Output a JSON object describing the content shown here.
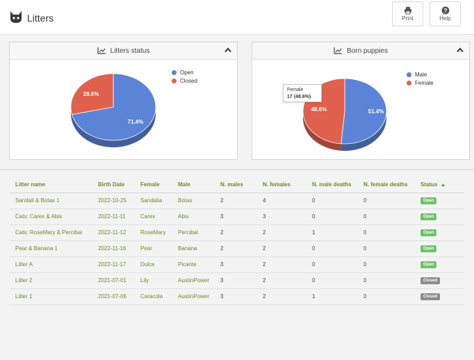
{
  "app": {
    "title": "Litters",
    "logo_icon": "cat-icon"
  },
  "toolbar": {
    "print_label": "Print",
    "help_label": "Help"
  },
  "panels": {
    "litters_status": {
      "title": "Litters status",
      "icon": "line-chart-icon",
      "chart_data": {
        "type": "pie",
        "categories": [
          "Open",
          "Closed"
        ],
        "values": [
          71.4,
          28.6
        ],
        "colors": [
          "#5b84d6",
          "#e0604e"
        ],
        "labels": [
          "71.4%",
          "28.6%"
        ],
        "legend": "top-right"
      }
    },
    "born_puppies": {
      "title": "Born puppies",
      "icon": "line-chart-icon",
      "chart_data": {
        "type": "pie",
        "categories": [
          "Male",
          "Female"
        ],
        "values": [
          51.4,
          48.6
        ],
        "colors": [
          "#5b84d6",
          "#e0604e"
        ],
        "labels": [
          "51.4%",
          "48.6%"
        ],
        "legend": "top-right",
        "tooltip": {
          "title": "Female",
          "value": "17 (48.6%)"
        }
      }
    }
  },
  "table": {
    "columns": [
      "Litter name",
      "Birth Date",
      "Female",
      "Male",
      "N. males",
      "N. females",
      "N. male deaths",
      "N. female deaths",
      "Status"
    ],
    "rows": [
      [
        "Sandali & Botas 1",
        "2022-10-25",
        "Sandalia",
        "Botas",
        "2",
        "4",
        "0",
        "0",
        "Open"
      ],
      [
        "Cats: Carex & Abis",
        "2022-11-11",
        "Carex",
        "Abis",
        "3",
        "3",
        "0",
        "0",
        "Open"
      ],
      [
        "Cats: RoseMary & Percibal",
        "2022-11-12",
        "RoseMary",
        "Percibal",
        "2",
        "2",
        "1",
        "0",
        "Open"
      ],
      [
        "Pear & Banana 1",
        "2022-11-16",
        "Pear",
        "Banana",
        "2",
        "2",
        "0",
        "0",
        "Open"
      ],
      [
        "Litter A",
        "2022-11-17",
        "Dulce",
        "Picante",
        "3",
        "2",
        "0",
        "0",
        "Open"
      ],
      [
        "Litter 2",
        "2021-07-01",
        "Lily",
        "AustinPower",
        "3",
        "2",
        "0",
        "0",
        "Closed"
      ],
      [
        "Litter 1",
        "2021-07-06",
        "Caracola",
        "AustinPower",
        "3",
        "2",
        "1",
        "0",
        "Closed"
      ]
    ],
    "status_colors": {
      "Open": "#6cc36b",
      "Closed": "#8c8c8c"
    }
  },
  "colors": {
    "accent_green": "#6c8a2e"
  }
}
